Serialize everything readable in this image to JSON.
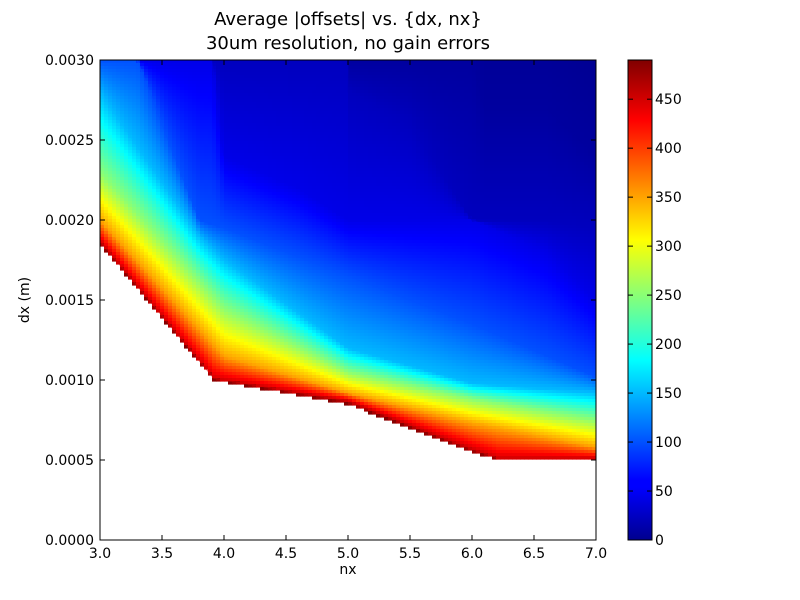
{
  "chart_data": {
    "type": "heatmap",
    "title": "Average |offsets| vs. {dx, nx}",
    "subtitle": "30um resolution, no gain errors",
    "xlabel": "nx",
    "ylabel": "dx (m)",
    "xlim": [
      3.0,
      7.0
    ],
    "ylim": [
      0.0,
      0.003
    ],
    "x_ticks": [
      "3.0",
      "3.5",
      "4.0",
      "4.5",
      "5.0",
      "5.5",
      "6.0",
      "6.5",
      "7.0"
    ],
    "y_ticks": [
      "0.0000",
      "0.0005",
      "0.0010",
      "0.0015",
      "0.0020",
      "0.0025",
      "0.0030"
    ],
    "colorbar": {
      "colormap": "jet",
      "range": [
        0,
        490
      ],
      "ticks": [
        "0",
        "50",
        "100",
        "150",
        "200",
        "250",
        "300",
        "350",
        "400",
        "450"
      ]
    },
    "undefined_region_color": "#ffffff",
    "lower_boundary": {
      "nx": [
        3.0,
        3.92,
        5.0,
        6.0,
        6.22,
        7.0
      ],
      "dx": [
        0.00185,
        0.001,
        0.00085,
        0.00055,
        0.0005,
        0.0005
      ]
    },
    "contours": [
      {
        "value": 450,
        "nx": [
          3.0,
          3.92,
          5.0,
          6.0,
          6.22,
          7.0
        ],
        "dx": [
          0.00187,
          0.00101,
          0.00087,
          0.00057,
          0.00051,
          0.00051
        ]
      },
      {
        "value": 350,
        "nx": [
          3.0,
          4.0,
          5.0,
          6.0,
          7.0
        ],
        "dx": [
          0.002,
          0.00115,
          0.00092,
          0.00073,
          0.00058
        ]
      },
      {
        "value": 250,
        "nx": [
          3.0,
          4.0,
          5.0,
          6.0,
          7.0
        ],
        "dx": [
          0.0023,
          0.00145,
          0.00105,
          0.00088,
          0.00075
        ]
      },
      {
        "value": 150,
        "nx": [
          3.0,
          3.8,
          4.0,
          5.0,
          6.0,
          7.0
        ],
        "dx": [
          0.0028,
          0.0019,
          0.00175,
          0.0012,
          0.00098,
          0.00092
        ]
      },
      {
        "value": 100,
        "nx": [
          3.3,
          3.8,
          4.0,
          5.0,
          6.0,
          7.0
        ],
        "dx": [
          0.003,
          0.002,
          0.00195,
          0.00165,
          0.00135,
          0.00102
        ]
      },
      {
        "value": 50,
        "nx": [
          3.9,
          4.0,
          4.6,
          5.0,
          5.6,
          6.0,
          6.6,
          7.0
        ],
        "dx": [
          0.003,
          0.0024,
          0.0022,
          0.002,
          0.002,
          0.002,
          0.0018,
          0.0015
        ]
      },
      {
        "value": 30,
        "nx": [
          5.0,
          5.0,
          5.5,
          6.0,
          6.6,
          7.0
        ],
        "dx": [
          0.003,
          0.0028,
          0.0026,
          0.002,
          0.002,
          0.00195
        ]
      },
      {
        "value": 15,
        "nx": [
          6.0,
          6.1,
          6.6,
          7.0
        ],
        "dx": [
          0.003,
          0.0027,
          0.0027,
          0.0024
        ]
      }
    ]
  }
}
